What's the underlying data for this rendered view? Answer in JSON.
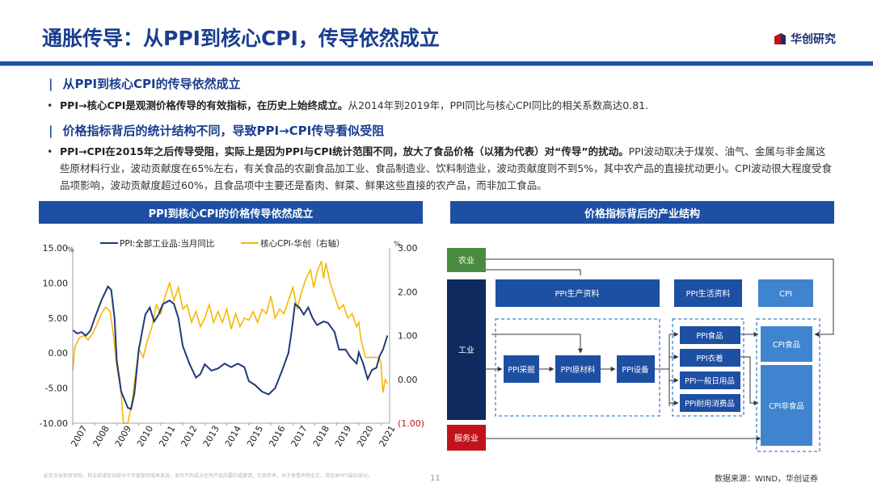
{
  "page": {
    "title": "通胀传导：从PPI到核心CPI，传导依然成立",
    "logo_text": "华创研究",
    "page_number": "11",
    "disclaimer": "此页包含机密资料，其全部或任何部分不可被复制或再发送。本页不构成对任何产品的要约或邀请，仅供参考。关于免责声明全文，请见本PPT最后部分。",
    "source": "数据来源：WIND，华创证券"
  },
  "sections": [
    {
      "heading": "从PPI到核心CPI的传导依然成立",
      "bullet_bold": "PPI→核心CPI是观测价格传导的有效指标，在历史上始终成立。",
      "bullet_rest": "从2014年到2019年，PPI同比与核心CPI同比的相关系数高达0.81."
    },
    {
      "heading": "价格指标背后的统计结构不同，导致PPI→CPI传导看似受阻",
      "bullet_bold": "PPI→CPI在2015年之后传导受阻，实际上是因为PPI与CPI统计范围不同，放大了食品价格（以猪为代表）对“传导”的扰动。",
      "bullet_rest": "PPI波动取决于煤炭、油气、金属与非金属这些原材料行业，波动贡献度在65%左右，有关食品的农副食品加工业、食品制造业、饮料制造业，波动贡献度则不到5%，其中农产品的直接扰动更小。CPI波动很大程度受食品项影响，波动贡献度超过60%，且食品项中主要还是畜肉、鲜菜、鲜果这些直接的农产品，而非加工食品。"
    }
  ],
  "left_panel": {
    "title": "PPI到核心CPI的价格传导依然成立"
  },
  "right_panel": {
    "title": "价格指标背后的产业结构"
  },
  "chart_data": {
    "type": "line",
    "legend": [
      "PPI:全部工业品:当月同比",
      "核心CPI-华创（右轴）"
    ],
    "legend_position": "top",
    "y_left": {
      "ticks": [
        "15.00",
        "10.00",
        "5.00",
        "0.00",
        "-5.00",
        "-10.00"
      ],
      "range": [
        -10,
        15
      ],
      "unit": "%"
    },
    "y_right": {
      "ticks": [
        "3.00",
        "2.00",
        "1.00",
        "0.00",
        "(1.00)"
      ],
      "range": [
        -1,
        3
      ],
      "unit": "%"
    },
    "x_ticks": [
      "2007",
      "2008",
      "2009",
      "2010",
      "2011",
      "2012",
      "2013",
      "2014",
      "2015",
      "2016",
      "2017",
      "2018",
      "2019",
      "2020",
      "2021"
    ],
    "x_range": [
      2007,
      2021.4
    ],
    "colors": {
      "ppi": "#1f3a7a",
      "core_cpi": "#f5b800"
    },
    "series": [
      {
        "name": "PPI:全部工业品:当月同比",
        "color": "#1f3a7a",
        "points": [
          [
            2007.0,
            3.3
          ],
          [
            2007.2,
            2.8
          ],
          [
            2007.4,
            3.0
          ],
          [
            2007.6,
            2.5
          ],
          [
            2007.8,
            3.2
          ],
          [
            2008.0,
            5.0
          ],
          [
            2008.3,
            7.5
          ],
          [
            2008.6,
            9.5
          ],
          [
            2008.75,
            9.0
          ],
          [
            2008.9,
            5.0
          ],
          [
            2009.0,
            -1.0
          ],
          [
            2009.2,
            -5.5
          ],
          [
            2009.5,
            -7.8
          ],
          [
            2009.65,
            -8.0
          ],
          [
            2009.8,
            -5.8
          ],
          [
            2010.0,
            0.5
          ],
          [
            2010.3,
            5.5
          ],
          [
            2010.5,
            6.5
          ],
          [
            2010.7,
            4.5
          ],
          [
            2010.9,
            5.5
          ],
          [
            2011.1,
            7.0
          ],
          [
            2011.4,
            7.5
          ],
          [
            2011.6,
            7.0
          ],
          [
            2011.8,
            5.0
          ],
          [
            2012.0,
            1.0
          ],
          [
            2012.3,
            -1.5
          ],
          [
            2012.6,
            -3.5
          ],
          [
            2012.8,
            -3.0
          ],
          [
            2013.0,
            -1.6
          ],
          [
            2013.3,
            -2.5
          ],
          [
            2013.6,
            -2.2
          ],
          [
            2013.9,
            -1.5
          ],
          [
            2014.2,
            -2.0
          ],
          [
            2014.5,
            -1.5
          ],
          [
            2014.8,
            -2.0
          ],
          [
            2015.0,
            -4.0
          ],
          [
            2015.3,
            -4.6
          ],
          [
            2015.6,
            -5.5
          ],
          [
            2015.9,
            -5.9
          ],
          [
            2016.2,
            -5.0
          ],
          [
            2016.5,
            -2.6
          ],
          [
            2016.8,
            0.0
          ],
          [
            2016.95,
            3.2
          ],
          [
            2017.1,
            7.0
          ],
          [
            2017.3,
            6.5
          ],
          [
            2017.5,
            5.5
          ],
          [
            2017.7,
            6.5
          ],
          [
            2017.9,
            5.0
          ],
          [
            2018.1,
            4.0
          ],
          [
            2018.4,
            4.5
          ],
          [
            2018.6,
            4.3
          ],
          [
            2018.9,
            3.0
          ],
          [
            2019.1,
            0.5
          ],
          [
            2019.4,
            0.5
          ],
          [
            2019.6,
            -0.5
          ],
          [
            2019.9,
            -1.5
          ],
          [
            2020.0,
            0.1
          ],
          [
            2020.2,
            -1.5
          ],
          [
            2020.4,
            -3.7
          ],
          [
            2020.6,
            -2.4
          ],
          [
            2020.8,
            -2.1
          ],
          [
            2020.95,
            -0.4
          ],
          [
            2021.1,
            0.5
          ],
          [
            2021.3,
            2.5
          ]
        ]
      },
      {
        "name": "核心CPI-华创（右轴）",
        "color": "#f5b800",
        "points": [
          [
            2007.0,
            0.2
          ],
          [
            2007.1,
            0.75
          ],
          [
            2007.3,
            0.95
          ],
          [
            2007.5,
            1.0
          ],
          [
            2007.7,
            0.9
          ],
          [
            2007.9,
            1.05
          ],
          [
            2008.1,
            1.25
          ],
          [
            2008.3,
            1.5
          ],
          [
            2008.5,
            1.65
          ],
          [
            2008.7,
            1.55
          ],
          [
            2008.85,
            1.0
          ],
          [
            2009.0,
            0.3
          ],
          [
            2009.2,
            -0.3
          ],
          [
            2009.3,
            -1.0
          ],
          [
            2009.5,
            -1.0
          ],
          [
            2009.7,
            -0.5
          ],
          [
            2010.0,
            0.7
          ],
          [
            2010.2,
            0.5
          ],
          [
            2010.4,
            0.9
          ],
          [
            2010.6,
            1.2
          ],
          [
            2010.8,
            1.7
          ],
          [
            2011.0,
            1.5
          ],
          [
            2011.2,
            1.9
          ],
          [
            2011.4,
            2.2
          ],
          [
            2011.6,
            1.8
          ],
          [
            2011.8,
            2.1
          ],
          [
            2012.0,
            1.6
          ],
          [
            2012.2,
            1.7
          ],
          [
            2012.4,
            1.3
          ],
          [
            2012.6,
            1.55
          ],
          [
            2012.8,
            1.2
          ],
          [
            2013.0,
            1.4
          ],
          [
            2013.2,
            1.7
          ],
          [
            2013.4,
            1.3
          ],
          [
            2013.6,
            1.55
          ],
          [
            2013.8,
            1.3
          ],
          [
            2014.0,
            1.6
          ],
          [
            2014.2,
            1.15
          ],
          [
            2014.4,
            1.5
          ],
          [
            2014.6,
            1.2
          ],
          [
            2014.8,
            1.4
          ],
          [
            2015.0,
            1.35
          ],
          [
            2015.2,
            1.55
          ],
          [
            2015.4,
            1.3
          ],
          [
            2015.6,
            1.6
          ],
          [
            2015.8,
            1.5
          ],
          [
            2016.0,
            1.9
          ],
          [
            2016.2,
            1.4
          ],
          [
            2016.4,
            1.6
          ],
          [
            2016.6,
            1.5
          ],
          [
            2016.8,
            1.8
          ],
          [
            2017.0,
            2.1
          ],
          [
            2017.2,
            1.6
          ],
          [
            2017.4,
            2.0
          ],
          [
            2017.6,
            2.3
          ],
          [
            2017.8,
            2.5
          ],
          [
            2017.95,
            2.1
          ],
          [
            2018.1,
            2.45
          ],
          [
            2018.3,
            2.7
          ],
          [
            2018.4,
            2.3
          ],
          [
            2018.5,
            2.65
          ],
          [
            2018.7,
            2.2
          ],
          [
            2018.9,
            1.9
          ],
          [
            2019.1,
            1.6
          ],
          [
            2019.3,
            1.7
          ],
          [
            2019.5,
            1.4
          ],
          [
            2019.7,
            1.5
          ],
          [
            2019.9,
            1.2
          ],
          [
            2020.0,
            1.3
          ],
          [
            2020.1,
            0.9
          ],
          [
            2020.3,
            0.5
          ],
          [
            2020.5,
            0.5
          ],
          [
            2020.7,
            0.5
          ],
          [
            2020.9,
            0.5
          ],
          [
            2021.0,
            0.4
          ],
          [
            2021.1,
            -0.3
          ],
          [
            2021.2,
            0.0
          ],
          [
            2021.3,
            -0.1
          ]
        ]
      }
    ]
  },
  "diagram": {
    "agriculture": "农业",
    "industry": "工业",
    "service": "服务业",
    "ppi_production": "PPI生产资料",
    "ppi_living": "PPI生活资料",
    "cpi": "CPI",
    "ppi_mining": "PPI采掘",
    "ppi_raw": "PPI原材料",
    "ppi_processing": "PPI设备",
    "ppi_food": "PPI食品",
    "ppi_clothing": "PPI衣着",
    "ppi_daily": "PPI一般日用品",
    "ppi_durable": "PPI耐用消费品",
    "cpi_food": "CPI食品",
    "cpi_nonfood": "CPI非食品",
    "colors": {
      "dark_navy": "#0e2a5e",
      "blue": "#1d4fa3",
      "light_blue": "#3f84cf",
      "green": "#4a8c3f",
      "red": "#c0141a"
    }
  }
}
